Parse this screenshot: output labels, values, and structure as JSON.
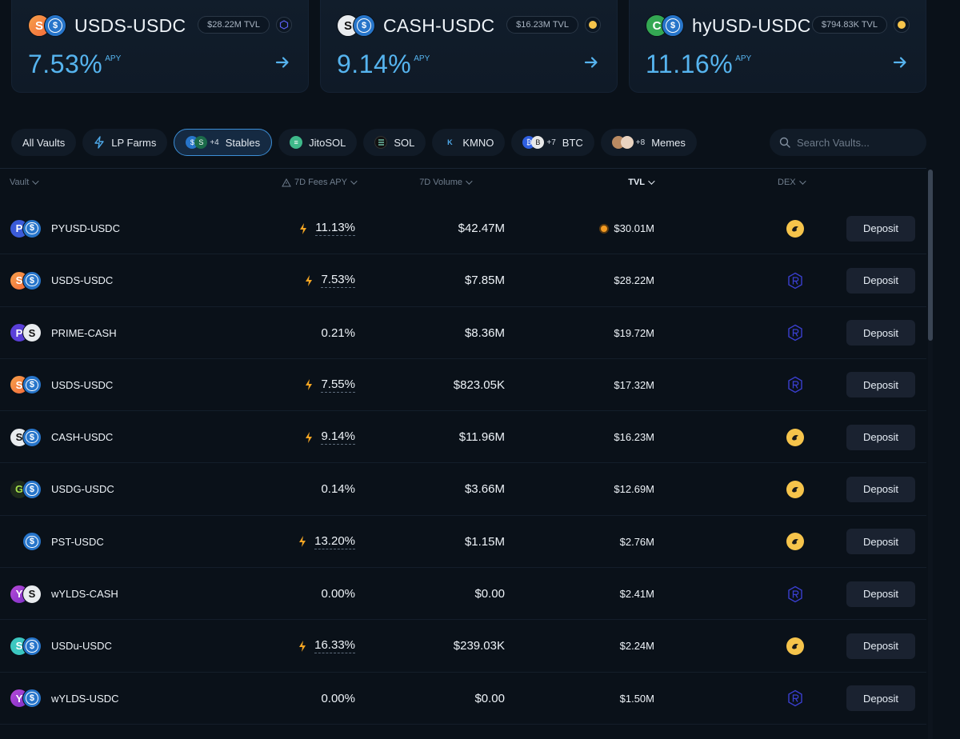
{
  "featured": [
    {
      "title": "USDS-USDC",
      "tvl": "$28.22M TVL",
      "apy": "7.53%",
      "apy_label": "APY",
      "tokens": [
        "usds",
        "usdc"
      ],
      "dex": "raydium"
    },
    {
      "title": "CASH-USDC",
      "tvl": "$16.23M TVL",
      "apy": "9.14%",
      "apy_label": "APY",
      "tokens": [
        "cash",
        "usdc"
      ],
      "dex": "orca"
    },
    {
      "title": "hyUSD-USDC",
      "tvl": "$794.83K TVL",
      "apy": "11.16%",
      "apy_label": "APY",
      "tokens": [
        "hyusd",
        "usdc"
      ],
      "dex": "orca"
    }
  ],
  "filters": [
    {
      "label": "All Vaults"
    },
    {
      "label": "LP Farms",
      "icon": "bolt-icon"
    },
    {
      "label": "Stables",
      "plus": "+4",
      "active": true
    },
    {
      "label": "JitoSOL"
    },
    {
      "label": "SOL"
    },
    {
      "label": "KMNO"
    },
    {
      "label": "BTC",
      "plus": "+7"
    },
    {
      "label": "Memes",
      "plus": "+8"
    }
  ],
  "search": {
    "placeholder": "Search Vaults..."
  },
  "columns": {
    "vault": "Vault",
    "apy": "7D Fees APY",
    "volume": "7D Volume",
    "tvl": "TVL",
    "dex": "DEX"
  },
  "deposit_label": "Deposit",
  "rows": [
    {
      "name": "PYUSD-USDC",
      "tokens": [
        "pyusd",
        "usdc"
      ],
      "apy": "11.13%",
      "boost": true,
      "volume": "$42.47M",
      "tvl": "$30.01M",
      "tvl_badge": true,
      "dex": "orca"
    },
    {
      "name": "USDS-USDC",
      "tokens": [
        "usds",
        "usdc"
      ],
      "apy": "7.53%",
      "boost": true,
      "volume": "$7.85M",
      "tvl": "$28.22M",
      "dex": "raydium"
    },
    {
      "name": "PRIME-CASH",
      "tokens": [
        "prime",
        "cash"
      ],
      "apy": "0.21%",
      "boost": false,
      "volume": "$8.36M",
      "tvl": "$19.72M",
      "dex": "raydium"
    },
    {
      "name": "USDS-USDC",
      "tokens": [
        "usds",
        "usdc"
      ],
      "apy": "7.55%",
      "boost": true,
      "volume": "$823.05K",
      "tvl": "$17.32M",
      "dex": "raydium"
    },
    {
      "name": "CASH-USDC",
      "tokens": [
        "cash",
        "usdc"
      ],
      "apy": "9.14%",
      "boost": true,
      "volume": "$11.96M",
      "tvl": "$16.23M",
      "dex": "orca"
    },
    {
      "name": "USDG-USDC",
      "tokens": [
        "usdg",
        "usdc"
      ],
      "apy": "0.14%",
      "boost": false,
      "volume": "$3.66M",
      "tvl": "$12.69M",
      "dex": "orca"
    },
    {
      "name": "PST-USDC",
      "tokens": [
        "usdc"
      ],
      "apy": "13.20%",
      "boost": true,
      "volume": "$1.15M",
      "tvl": "$2.76M",
      "dex": "orca"
    },
    {
      "name": "wYLDS-CASH",
      "tokens": [
        "wylds",
        "cash"
      ],
      "apy": "0.00%",
      "boost": false,
      "volume": "$0.00",
      "tvl": "$2.41M",
      "dex": "raydium"
    },
    {
      "name": "USDu-USDC",
      "tokens": [
        "usdu",
        "usdc"
      ],
      "apy": "16.33%",
      "boost": true,
      "volume": "$239.03K",
      "tvl": "$2.24M",
      "dex": "orca"
    },
    {
      "name": "wYLDS-USDC",
      "tokens": [
        "wylds",
        "usdc"
      ],
      "apy": "0.00%",
      "boost": false,
      "volume": "$0.00",
      "tvl": "$1.50M",
      "dex": "raydium"
    }
  ]
}
